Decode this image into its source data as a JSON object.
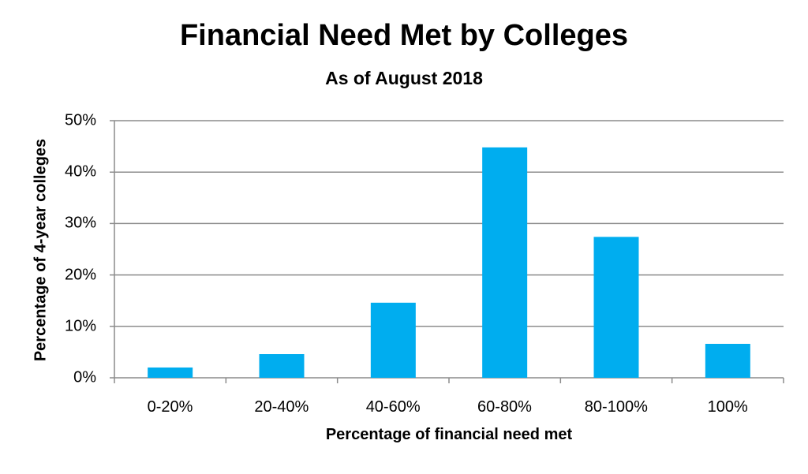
{
  "chart_data": {
    "type": "bar",
    "title": "Financial Need Met by Colleges",
    "subtitle": "As of August 2018",
    "xlabel": "Percentage of financial need met",
    "ylabel": "Percentage of 4-year colleges",
    "categories": [
      "0-20%",
      "20-40%",
      "40-60%",
      "60-80%",
      "80-100%",
      "100%"
    ],
    "values": [
      2,
      4.6,
      14.6,
      44.8,
      27.4,
      6.6
    ],
    "ylim": [
      0,
      50
    ],
    "yticks": [
      "0%",
      "10%",
      "20%",
      "30%",
      "40%",
      "50%"
    ],
    "grid": true,
    "legend": null,
    "bar_color": "#00adef"
  }
}
